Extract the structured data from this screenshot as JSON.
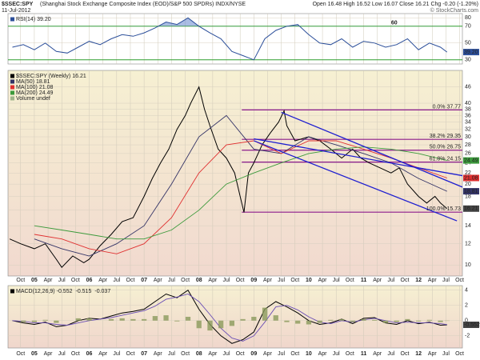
{
  "header": {
    "title": "$SSEC:SPY",
    "subtitle": "(Shanghai Stock Exchange Composite Index (EOD)/S&P 500 SPDRs) INDX/NYSE",
    "date": "11-Jul-2012",
    "quote": "Open 16.48 High 16.52 Low 16.07 Close 16.21 Chg -0.20 (-1.20%)",
    "credit": "© StockCharts.com"
  },
  "chart_data": [
    {
      "type": "line",
      "x": [
        2004.6,
        2004.8,
        2005,
        2005.2,
        2005.4,
        2005.6,
        2005.8,
        2006,
        2006.2,
        2006.4,
        2006.6,
        2006.8,
        2007,
        2007.2,
        2007.4,
        2007.6,
        2007.8,
        2008,
        2008.2,
        2008.4,
        2008.6,
        2008.8,
        2009,
        2009.2,
        2009.4,
        2009.6,
        2009.8,
        2010,
        2010.2,
        2010.4,
        2010.6,
        2010.8,
        2011,
        2011.2,
        2011.4,
        2011.6,
        2011.8,
        2012,
        2012.2,
        2012.4,
        2012.52
      ],
      "series": [
        {
          "name": "RSI(14)",
          "color": "#2c4f9a",
          "values": [
            45,
            48,
            42,
            50,
            40,
            38,
            45,
            52,
            48,
            55,
            60,
            58,
            62,
            68,
            75,
            72,
            80,
            70,
            62,
            55,
            40,
            35,
            30,
            55,
            65,
            70,
            72,
            60,
            50,
            48,
            55,
            45,
            52,
            50,
            45,
            48,
            55,
            42,
            50,
            45,
            39.2
          ],
          "last_label": "39.20"
        }
      ],
      "ylim": [
        25,
        85
      ],
      "yticks": [
        30,
        50,
        70,
        80
      ],
      "levels": [
        70,
        30
      ],
      "level_color": "#2e9e2e",
      "level_label": "60"
    },
    {
      "type": "line",
      "log_scale": true,
      "xlim": [
        2004.52,
        2012.8
      ],
      "xticks": [
        {
          "value": 2004.75,
          "label": "Oct"
        },
        {
          "value": 2005,
          "label": "05"
        },
        {
          "value": 2005.25,
          "label": "Apr"
        },
        {
          "value": 2005.5,
          "label": "Jul"
        },
        {
          "value": 2005.75,
          "label": "Oct"
        },
        {
          "value": 2006,
          "label": "06"
        },
        {
          "value": 2006.25,
          "label": "Apr"
        },
        {
          "value": 2006.5,
          "label": "Jul"
        },
        {
          "value": 2006.75,
          "label": "Oct"
        },
        {
          "value": 2007,
          "label": "07"
        },
        {
          "value": 2007.25,
          "label": "Apr"
        },
        {
          "value": 2007.5,
          "label": "Jul"
        },
        {
          "value": 2007.75,
          "label": "Oct"
        },
        {
          "value": 2008,
          "label": "08"
        },
        {
          "value": 2008.25,
          "label": "Apr"
        },
        {
          "value": 2008.5,
          "label": "Jul"
        },
        {
          "value": 2008.75,
          "label": "Oct"
        },
        {
          "value": 2009,
          "label": "09"
        },
        {
          "value": 2009.25,
          "label": "Apr"
        },
        {
          "value": 2009.5,
          "label": "Jul"
        },
        {
          "value": 2009.75,
          "label": "Oct"
        },
        {
          "value": 2010,
          "label": "10"
        },
        {
          "value": 2010.25,
          "label": "Apr"
        },
        {
          "value": 2010.5,
          "label": "Jul"
        },
        {
          "value": 2010.75,
          "label": "Oct"
        },
        {
          "value": 2011,
          "label": "11"
        },
        {
          "value": 2011.25,
          "label": "Apr"
        },
        {
          "value": 2011.5,
          "label": "Jul"
        },
        {
          "value": 2011.75,
          "label": "Oct"
        },
        {
          "value": 2012,
          "label": "12"
        },
        {
          "value": 2012.25,
          "label": "Apr"
        },
        {
          "value": 2012.5,
          "label": "Jul"
        },
        {
          "value": 2012.75,
          "label": "Oct"
        }
      ],
      "ylim": [
        9.1,
        53
      ],
      "yticks": [
        10,
        12,
        14,
        16,
        18,
        20,
        22,
        24,
        26,
        28,
        30,
        32,
        34,
        36,
        38,
        40,
        46
      ],
      "series": [
        {
          "name": "$SSEC:SPY (Weekly)",
          "color": "#000000",
          "x": [
            2004.55,
            2004.75,
            2005.0,
            2005.2,
            2005.4,
            2005.5,
            2005.7,
            2005.9,
            2006.0,
            2006.2,
            2006.4,
            2006.6,
            2006.8,
            2007.0,
            2007.15,
            2007.3,
            2007.45,
            2007.6,
            2007.75,
            2007.85,
            2008.0,
            2008.1,
            2008.2,
            2008.35,
            2008.5,
            2008.65,
            2008.75,
            2008.82,
            2008.9,
            2009.0,
            2009.15,
            2009.3,
            2009.45,
            2009.55,
            2009.6,
            2009.75,
            2010.0,
            2010.2,
            2010.4,
            2010.6,
            2010.8,
            2010.95,
            2011.1,
            2011.3,
            2011.5,
            2011.65,
            2011.8,
            2012.0,
            2012.15,
            2012.3,
            2012.4,
            2012.52
          ],
          "values": [
            12.5,
            12.0,
            11.5,
            12.0,
            10.5,
            9.8,
            10.8,
            10.2,
            10.5,
            11.8,
            13.0,
            14.5,
            15.0,
            18,
            21,
            24,
            27,
            32,
            36,
            40,
            46,
            38,
            33,
            27,
            25,
            22,
            18,
            15.7,
            22,
            24,
            28,
            31,
            34,
            37.5,
            33,
            29,
            30,
            29,
            27,
            25,
            27,
            25,
            24,
            23,
            22,
            23,
            20,
            18,
            17,
            18,
            17,
            16.21
          ]
        },
        {
          "name": "MA(50)",
          "color": "#333366",
          "x": [
            2005.0,
            2005.5,
            2006.0,
            2006.5,
            2007.0,
            2007.5,
            2008.0,
            2008.5,
            2009.0,
            2009.5,
            2010.0,
            2010.5,
            2011.0,
            2011.5,
            2012.0,
            2012.52
          ],
          "values": [
            12.5,
            11.5,
            10.8,
            12,
            14,
            20,
            30,
            36,
            27,
            26,
            30,
            28,
            26,
            24,
            21,
            18.81
          ]
        },
        {
          "name": "MA(100)",
          "color": "#e03030",
          "x": [
            2005.0,
            2005.5,
            2006.0,
            2006.5,
            2007.0,
            2007.5,
            2008.0,
            2008.5,
            2009.0,
            2009.5,
            2010.0,
            2010.5,
            2011.0,
            2011.5,
            2012.0,
            2012.52
          ],
          "values": [
            13,
            12.5,
            11.5,
            11,
            12,
            15,
            22,
            28,
            29,
            26,
            29,
            29,
            27,
            25,
            23,
            21.08
          ]
        },
        {
          "name": "MA(200)",
          "color": "#3c9a3c",
          "x": [
            2005.0,
            2005.5,
            2006.0,
            2006.5,
            2007.0,
            2007.5,
            2008.0,
            2008.5,
            2009.0,
            2009.5,
            2010.0,
            2010.5,
            2011.0,
            2011.5,
            2012.0,
            2012.52
          ],
          "values": [
            14,
            13.5,
            13,
            12.5,
            12.5,
            13.5,
            16,
            20,
            22,
            24,
            26,
            27,
            27.5,
            27,
            26,
            24.49
          ]
        }
      ],
      "volume_label": "Volume undef",
      "fib_start": 2008.78,
      "fib_color": "#8b1a8b",
      "fib_levels": [
        {
          "value": 37.77,
          "label": "0.0% 37.77"
        },
        {
          "value": 29.35,
          "label": "38.2% 29.35"
        },
        {
          "value": 26.75,
          "label": "50.0% 26.75"
        },
        {
          "value": 24.15,
          "label": "61.8% 24.15"
        },
        {
          "value": 15.73,
          "label": "100.0% 15.73"
        }
      ],
      "trend_color": "#1f1fd0",
      "trendlines": [
        {
          "x": [
            2009.5,
            2012.8
          ],
          "values": [
            37,
            19.5
          ]
        },
        {
          "x": [
            2009.0,
            2012.8
          ],
          "values": [
            29.5,
            21.5
          ]
        },
        {
          "x": [
            2009.0,
            2012.7
          ],
          "values": [
            29,
            14.6
          ]
        }
      ]
    },
    {
      "type": "line",
      "x": [
        2004.6,
        2004.8,
        2005,
        2005.2,
        2005.4,
        2005.6,
        2005.8,
        2006,
        2006.2,
        2006.4,
        2006.6,
        2006.8,
        2007,
        2007.2,
        2007.4,
        2007.6,
        2007.8,
        2008,
        2008.2,
        2008.4,
        2008.6,
        2008.8,
        2009,
        2009.2,
        2009.4,
        2009.6,
        2009.8,
        2010,
        2010.2,
        2010.4,
        2010.6,
        2010.8,
        2011,
        2011.2,
        2011.4,
        2011.6,
        2011.8,
        2012,
        2012.2,
        2012.4,
        2012.52
      ],
      "ylim": [
        -3.6,
        4.6
      ],
      "yticks": [
        -2,
        0,
        2,
        4
      ],
      "series": [
        {
          "name": "MACD(12,26,9)",
          "color": "#000000",
          "values": [
            0,
            -0.3,
            -0.5,
            -0.2,
            -0.8,
            -0.6,
            0,
            0.3,
            0.2,
            0.6,
            1.0,
            1.2,
            1.5,
            2.5,
            3.5,
            3.0,
            4.0,
            1.5,
            -0.5,
            -2.0,
            -3.0,
            -2.5,
            -1.5,
            1.5,
            2.5,
            1.8,
            1.0,
            0,
            -0.5,
            -0.3,
            0.2,
            -0.4,
            0.3,
            0.4,
            -0.3,
            -0.5,
            0,
            -0.4,
            -0.2,
            -0.6,
            -0.552
          ]
        },
        {
          "color": "#6b4fb5",
          "values": [
            0,
            -0.1,
            -0.3,
            -0.3,
            -0.5,
            -0.6,
            -0.3,
            0,
            0.2,
            0.4,
            0.7,
            1.0,
            1.3,
            1.9,
            2.8,
            3.1,
            3.5,
            2.5,
            0.8,
            -1.0,
            -2.3,
            -2.7,
            -2.0,
            -0.2,
            1.8,
            2.0,
            1.4,
            0.5,
            -0.2,
            -0.4,
            0,
            -0.2,
            0.1,
            0.3,
            0,
            -0.3,
            -0.2,
            -0.3,
            -0.3,
            -0.4,
            -0.515
          ]
        },
        {
          "kind": "histogram",
          "color": "#8a9a5b",
          "values": [
            0,
            -0.2,
            -0.2,
            0.1,
            -0.3,
            0,
            0.3,
            0.3,
            0,
            0.2,
            0.3,
            0.2,
            0.2,
            0.6,
            0.7,
            -0.1,
            0.5,
            -1.0,
            -1.3,
            -1.0,
            -0.7,
            0.2,
            0.5,
            1.7,
            0.7,
            -0.2,
            -0.4,
            -0.5,
            -0.3,
            0.1,
            0.2,
            -0.2,
            0.2,
            0.1,
            -0.3,
            -0.2,
            0.2,
            -0.1,
            0.1,
            -0.2,
            -0.037
          ]
        }
      ]
    }
  ]
}
